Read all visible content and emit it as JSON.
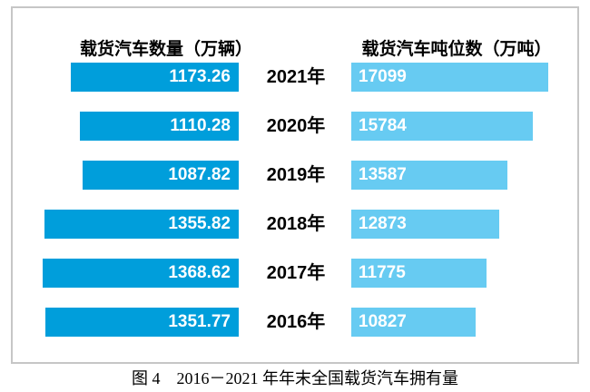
{
  "chart_data": {
    "type": "bar",
    "orientation": "horizontal",
    "title": "",
    "caption": "图 4　2016－2021 年年末全国载货汽车拥有量",
    "categories": [
      "2021年",
      "2020年",
      "2019年",
      "2018年",
      "2017年",
      "2016年"
    ],
    "series": [
      {
        "name": "载货汽车数量（万辆）",
        "values": [
          1173.26,
          1110.28,
          1087.82,
          1355.82,
          1368.62,
          1351.77
        ],
        "labels": [
          "1173.26",
          "1110.28",
          "1087.82",
          "1355.82",
          "1368.62",
          "1351.77"
        ],
        "color": "#009EDB",
        "bar_direction": "right-to-left",
        "label_position": "inside-right",
        "label_color": "#ffffff"
      },
      {
        "name": "载货汽车吨位数（万吨）",
        "values": [
          17099,
          15784,
          13587,
          12873,
          11775,
          10827
        ],
        "labels": [
          "17099",
          "15784",
          "13587",
          "12873",
          "11775",
          "10827"
        ],
        "color": "#67CBF2",
        "bar_direction": "left-to-right",
        "label_position": "inside-left",
        "label_color": "#ffffff"
      }
    ],
    "legend_position": "top",
    "grid": false,
    "axes_visible": false,
    "value_labels_inside_bars": true,
    "frame_border_color": "#c6c6c6"
  }
}
